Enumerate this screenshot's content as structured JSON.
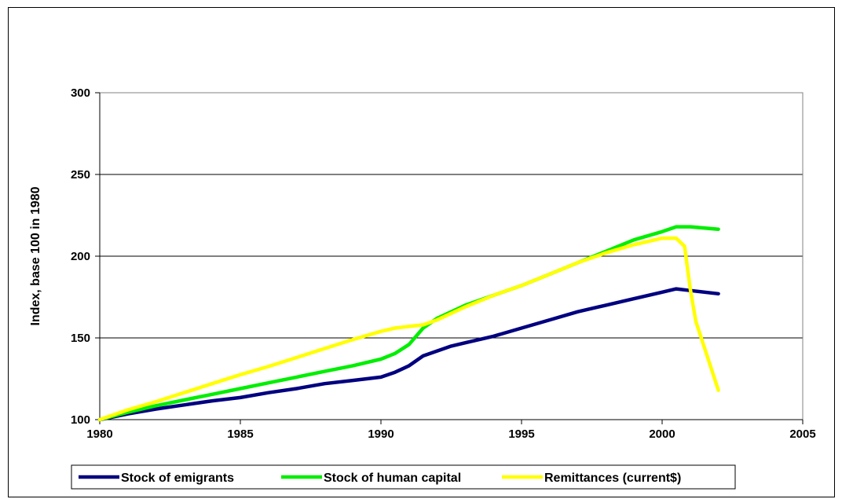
{
  "chart_data": {
    "type": "line",
    "title": "",
    "xlabel": "",
    "ylabel": "Index, base 100 in 1980",
    "xlim": [
      1980,
      2005
    ],
    "ylim": [
      100,
      300
    ],
    "x_ticks": [
      "1980",
      "1985",
      "1990",
      "1995",
      "2000",
      "2005"
    ],
    "y_ticks": [
      "100",
      "150",
      "200",
      "250",
      "300"
    ],
    "grid": "horizontal",
    "legend_position": "bottom",
    "series": [
      {
        "name": "Stock of emigrants",
        "color": "#000080",
        "x": [
          1980,
          1981,
          1982,
          1983,
          1984,
          1985,
          1986,
          1987,
          1988,
          1989,
          1990,
          1990.5,
          1991,
          1991.5,
          1992,
          1992.5,
          1993,
          1994,
          1995,
          1996,
          1997,
          1998,
          1999,
          2000,
          2000.5,
          2001,
          2002
        ],
        "y": [
          100,
          103.5,
          106.5,
          109,
          111.5,
          113.5,
          116.5,
          119,
          122,
          124,
          126,
          129,
          133,
          139,
          142,
          145,
          147,
          151,
          156,
          161,
          166,
          170,
          174,
          178,
          180,
          179,
          177
        ]
      },
      {
        "name": "Stock of human capital",
        "color": "#00ee00",
        "x": [
          1980,
          1981,
          1982,
          1983,
          1984,
          1985,
          1986,
          1987,
          1988,
          1989,
          1990,
          1990.5,
          1991,
          1991.5,
          1992,
          1993,
          1994,
          1995,
          1996,
          1997,
          1998,
          1999,
          2000,
          2000.5,
          2001,
          2002
        ],
        "y": [
          100,
          104.5,
          108.5,
          112,
          115.5,
          119,
          122.5,
          126,
          129.5,
          133,
          137,
          140.5,
          146,
          156,
          162,
          170,
          176,
          182,
          189,
          196,
          203,
          210,
          215,
          218,
          218,
          216.5
        ]
      },
      {
        "name": "Remittances (current$)",
        "color": "#ffff00",
        "x": [
          1980,
          1981,
          1982,
          1983,
          1984,
          1985,
          1986,
          1987,
          1988,
          1989,
          1990,
          1990.5,
          1991,
          1991.5,
          1992,
          1993,
          1994,
          1995,
          1996,
          1997,
          1998,
          1999,
          2000,
          2000.5,
          2000.8,
          2001,
          2001.2,
          2002
        ],
        "y": [
          100,
          106,
          111,
          116.5,
          122,
          127.5,
          132.5,
          138,
          143.5,
          149,
          154,
          156,
          157,
          158,
          161,
          169,
          176,
          182,
          189,
          196,
          202,
          207,
          211,
          211,
          206,
          180,
          160,
          118
        ]
      }
    ]
  }
}
